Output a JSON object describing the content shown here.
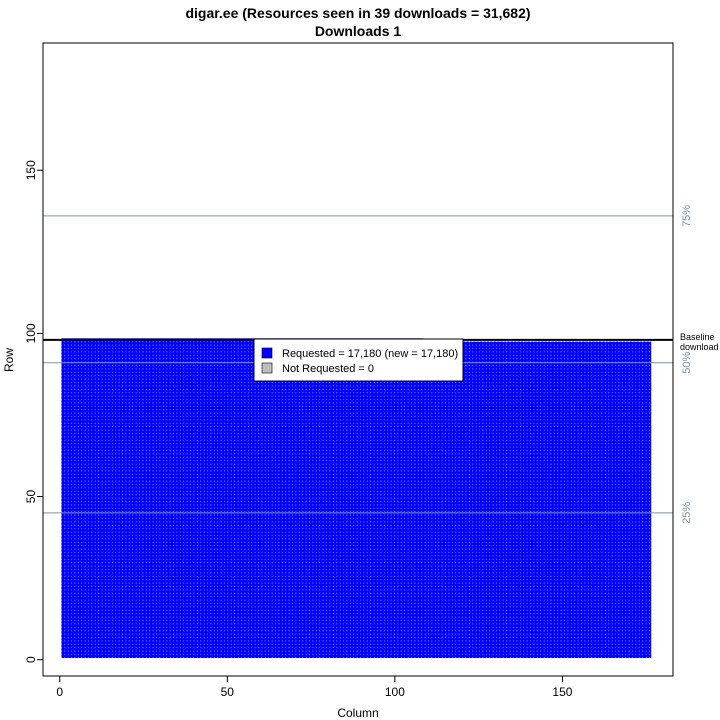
{
  "chart_data": {
    "type": "heatmap",
    "title": "digar.ee (Resources seen in 39 downloads = 31,682)",
    "subtitle": "Downloads 1",
    "xlabel": "Column",
    "ylabel": "Row",
    "xlim": [
      -5,
      183
    ],
    "ylim": [
      -5,
      189
    ],
    "x_ticks": [
      0,
      50,
      100,
      150
    ],
    "y_ticks": [
      0,
      50,
      100,
      150
    ],
    "grid": false,
    "legend_position": "top-center",
    "colors": {
      "requested": "#0000ff",
      "not_requested": "#bebebe",
      "percentile_line": "#7a96a8",
      "baseline_line": "#000000",
      "cell_gap": "#dde4ff"
    },
    "series": [
      {
        "name": "Requested = 17,180 (new = 17,180)",
        "color": "#0000ff",
        "count": 17180
      },
      {
        "name": "Not Requested = 0",
        "color": "#bebebe",
        "count": 0
      }
    ],
    "grid_columns": 176,
    "full_rows_top": 97,
    "last_row": {
      "row": 98,
      "columns": 108
    },
    "percentile_lines": [
      {
        "label": "25%",
        "row": 45
      },
      {
        "label": "50%",
        "row": 91
      },
      {
        "label": "75%",
        "row": 136
      }
    ],
    "baseline": {
      "row": 98,
      "label_lines": [
        "Baseline",
        "download"
      ]
    }
  }
}
